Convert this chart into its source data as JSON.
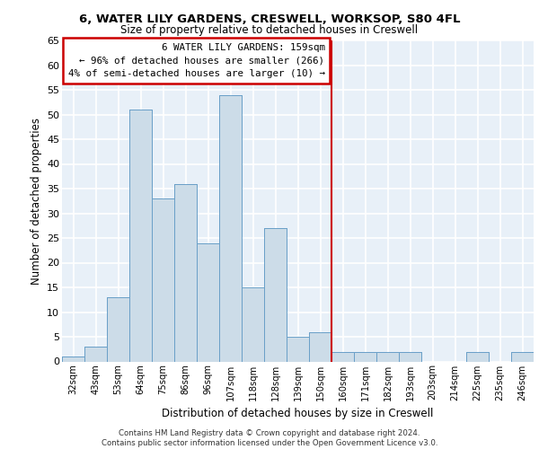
{
  "title1": "6, WATER LILY GARDENS, CRESWELL, WORKSOP, S80 4FL",
  "title2": "Size of property relative to detached houses in Creswell",
  "xlabel": "Distribution of detached houses by size in Creswell",
  "ylabel": "Number of detached properties",
  "categories": [
    "32sqm",
    "43sqm",
    "53sqm",
    "64sqm",
    "75sqm",
    "86sqm",
    "96sqm",
    "107sqm",
    "118sqm",
    "128sqm",
    "139sqm",
    "150sqm",
    "160sqm",
    "171sqm",
    "182sqm",
    "193sqm",
    "203sqm",
    "214sqm",
    "225sqm",
    "235sqm",
    "246sqm"
  ],
  "values": [
    1,
    3,
    13,
    51,
    33,
    36,
    24,
    54,
    15,
    27,
    5,
    6,
    2,
    2,
    2,
    2,
    0,
    0,
    2,
    0,
    2
  ],
  "bar_color": "#ccdce8",
  "bar_edge_color": "#6aa0c8",
  "annotation_text": "6 WATER LILY GARDENS: 159sqm\n← 96% of detached houses are smaller (266)\n4% of semi-detached houses are larger (10) →",
  "annotation_box_color": "#ffffff",
  "annotation_box_edge_color": "#cc0000",
  "vline_color": "#cc0000",
  "background_color": "#e8f0f8",
  "grid_color": "#ffffff",
  "footer_text": "Contains HM Land Registry data © Crown copyright and database right 2024.\nContains public sector information licensed under the Open Government Licence v3.0.",
  "ylim": [
    0,
    65
  ],
  "yticks": [
    0,
    5,
    10,
    15,
    20,
    25,
    30,
    35,
    40,
    45,
    50,
    55,
    60,
    65
  ],
  "vline_index": 11.5
}
